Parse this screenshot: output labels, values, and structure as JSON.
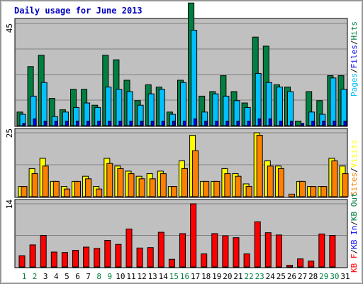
{
  "chart_data": {
    "type": "bar",
    "title": "Daily usage for June 2013",
    "categories": [
      "1",
      "2",
      "3",
      "4",
      "5",
      "6",
      "7",
      "8",
      "9",
      "10",
      "11",
      "12",
      "13",
      "14",
      "15",
      "16",
      "17",
      "18",
      "19",
      "20",
      "21",
      "22",
      "23",
      "24",
      "25",
      "26",
      "27",
      "28",
      "29",
      "30",
      "31"
    ],
    "weekend_days": [
      "1",
      "2",
      "8",
      "9",
      "15",
      "16",
      "22",
      "23",
      "29",
      "30"
    ],
    "panels": [
      {
        "id": "top",
        "ymax_label": "45",
        "ymax": 45,
        "legend": [
          "Pages",
          "/",
          "Files",
          "/",
          "Hits"
        ],
        "series": [
          {
            "name": "Hits",
            "color": "#008040",
            "values": [
              6,
              26,
              31,
              12,
              7,
              16,
              16,
              9,
              31,
              29,
              20,
              11,
              18,
              17,
              6,
              20,
              54,
              13,
              15,
              22,
              15,
              10,
              39,
              35,
              18,
              17,
              2,
              15,
              11,
              22,
              22
            ]
          },
          {
            "name": "Files",
            "color": "#00c0ff",
            "values": [
              5,
              13,
              19,
              4,
              6,
              8,
              10,
              8,
              17,
              16,
              15,
              9,
              14,
              16,
              5,
              19,
              42,
              6,
              14,
              13,
              11,
              8,
              23,
              19,
              17,
              15,
              null,
              6,
              5,
              21,
              16
            ]
          },
          {
            "name": "Pages",
            "color": "#0000ff",
            "values": [
              1,
              3,
              2,
              2,
              2,
              2,
              2,
              2,
              2,
              2,
              2,
              2,
              2,
              2,
              2,
              2,
              3,
              2,
              2,
              2,
              2,
              2,
              3,
              3,
              2,
              2,
              1,
              2,
              2,
              2,
              2
            ]
          }
        ]
      },
      {
        "id": "middle",
        "ymax_label": "25",
        "ymax": 25,
        "legend": [
          "Sites",
          "/",
          "Visits"
        ],
        "series": [
          {
            "name": "Visits",
            "color": "#ffff00",
            "values": [
              4,
              11,
              15,
              6,
              4,
              6,
              8,
              4,
              15,
              12,
              10,
              8,
              9,
              10,
              4,
              14,
              24,
              6,
              6,
              11,
              9,
              5,
              25,
              14,
              12,
              null,
              6,
              4,
              4,
              15,
              12
            ]
          },
          {
            "name": "Sites",
            "color": "#ff8000",
            "values": [
              4,
              9,
              12,
              6,
              3,
              6,
              7,
              3,
              13,
              11,
              9,
              7,
              7,
              9,
              4,
              11,
              18,
              6,
              6,
              9,
              8,
              4,
              24,
              12,
              11,
              1,
              6,
              4,
              4,
              14,
              9
            ]
          }
        ]
      },
      {
        "id": "bottom",
        "ymax_label": "14",
        "ymax": 14,
        "legend": [
          "KB F",
          "/",
          "KB In",
          "/",
          "KB Out"
        ],
        "series": [
          {
            "name": "KB F",
            "color": "#ff0000",
            "values": [
              2.5,
              4.9,
              7.0,
              3.3,
              3.2,
              3.7,
              4.4,
              4.1,
              5.9,
              5.0,
              8.4,
              4.2,
              4.3,
              7.7,
              1.7,
              7.4,
              14,
              2.9,
              7.4,
              6.9,
              6.5,
              2.9,
              10,
              7.6,
              7.1,
              0.4,
              1.8,
              1.3,
              7.3,
              7.0,
              null
            ]
          }
        ]
      }
    ],
    "colors": {
      "title": "#0000c0",
      "background": "#c0c0c0",
      "grid": "#808080",
      "weekday_label": "#000000",
      "weekend_label": "#008040"
    }
  }
}
